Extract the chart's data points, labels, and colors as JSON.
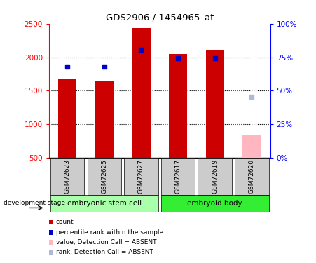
{
  "title": "GDS2906 / 1454965_at",
  "categories": [
    "GSM72623",
    "GSM72625",
    "GSM72627",
    "GSM72617",
    "GSM72619",
    "GSM72620"
  ],
  "bar_values": [
    1670,
    1640,
    2430,
    2050,
    2110,
    null
  ],
  "bar_values_absent": [
    null,
    null,
    null,
    null,
    null,
    830
  ],
  "dot_values": [
    1860,
    1860,
    2110,
    1990,
    1990,
    null
  ],
  "dot_values_absent": [
    null,
    null,
    null,
    null,
    null,
    1410
  ],
  "ylim_left": [
    500,
    2500
  ],
  "ylim_right": [
    0,
    100
  ],
  "yticks_left": [
    500,
    1000,
    1500,
    2000,
    2500
  ],
  "yticks_right": [
    0,
    25,
    50,
    75,
    100
  ],
  "ytick_labels_right": [
    "0%",
    "25%",
    "50%",
    "75%",
    "100%"
  ],
  "group1_label": "embryonic stem cell",
  "group2_label": "embryoid body",
  "group1_indices": [
    0,
    1,
    2
  ],
  "group2_indices": [
    3,
    4,
    5
  ],
  "stage_label": "development stage",
  "legend_items": [
    {
      "label": "count",
      "color": "#cc0000"
    },
    {
      "label": "percentile rank within the sample",
      "color": "#0000cc"
    },
    {
      "label": "value, Detection Call = ABSENT",
      "color": "#ffb6c1"
    },
    {
      "label": "rank, Detection Call = ABSENT",
      "color": "#b0b8d8"
    }
  ],
  "bar_color": "#cc0000",
  "bar_color_absent": "#ffb6c1",
  "dot_color": "#0000cc",
  "dot_color_absent": "#b0b8d8",
  "group1_bg": "#aaffaa",
  "group2_bg": "#33ee33",
  "tick_label_bg": "#cccccc",
  "bar_width": 0.5
}
